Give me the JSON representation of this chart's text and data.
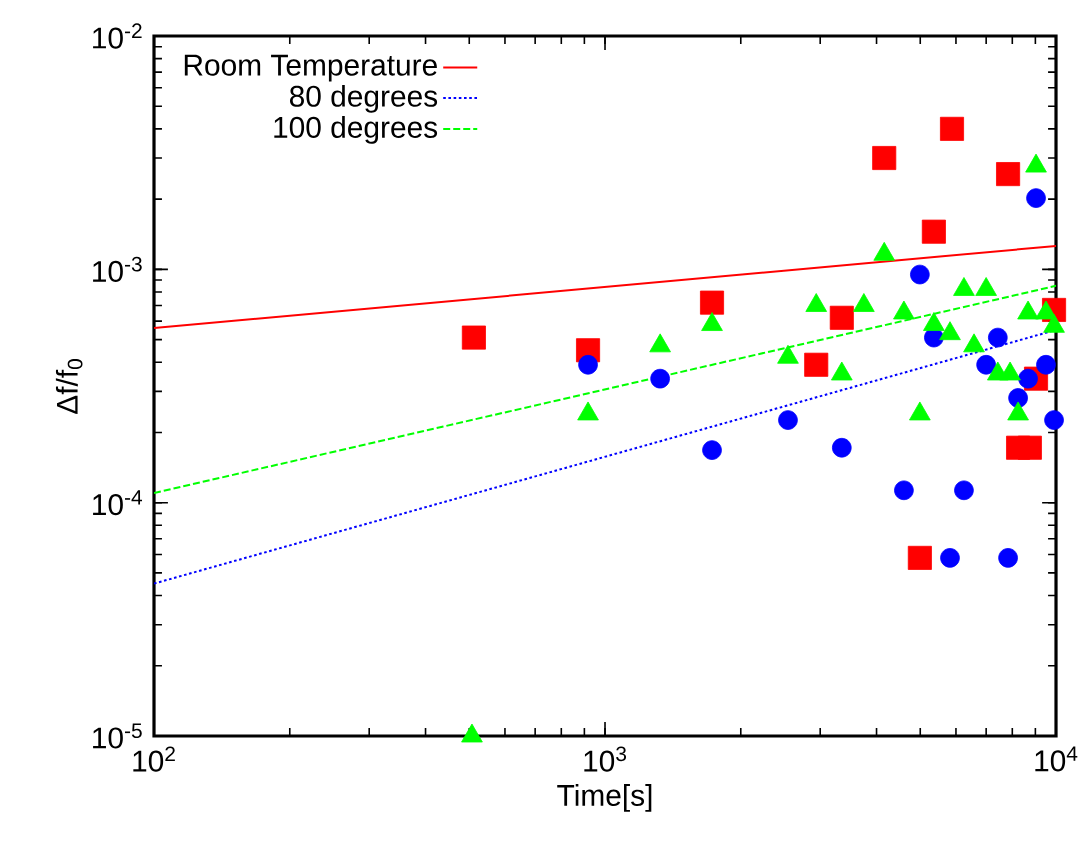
{
  "chart_data": {
    "type": "scatter",
    "xlabel": "Time[s]",
    "ylabel": "Δf/f$_{0}$",
    "log": "xy",
    "legend": "top left",
    "xlim": [
      100,
      10000
    ],
    "ylim": [
      1e-05,
      0.01
    ],
    "xticks": [
      {
        "value": 100,
        "label": "10$^{2}$"
      },
      {
        "value": 1000,
        "label": "10$^{3}$"
      },
      {
        "value": 10000,
        "label": "10$^{4}$"
      }
    ],
    "yticks": [
      {
        "value": 1e-05,
        "label": "10$^{-5}$"
      },
      {
        "value": 0.0001,
        "label": "10$^{-4}$"
      },
      {
        "value": 0.001,
        "label": "10$^{-3}$"
      },
      {
        "value": 0.01,
        "label": "10$^{-2}$"
      }
    ],
    "series": [
      {
        "name": "Room Temperature",
        "type": "line",
        "color": "#ff0000",
        "line_style": "solid",
        "marker": "none",
        "x": [
          100,
          10000
        ],
        "values": [
          0.00056,
          0.00126
        ]
      },
      {
        "name": "80 degrees",
        "type": "line",
        "color": "#0000ff",
        "line_style": "dotted",
        "marker": "none",
        "x": [
          100,
          10000
        ],
        "values": [
          4.5e-05,
          0.00055
        ]
      },
      {
        "name": "100 degrees",
        "type": "line",
        "color": "#00ff00",
        "line_style": "dashed",
        "marker": "none",
        "x": [
          100,
          10000
        ],
        "values": [
          0.00011,
          0.00085
        ]
      },
      {
        "color": "#ff0000",
        "marker": "square",
        "x": [
          512,
          917,
          1727,
          2940,
          3350,
          4160,
          4990,
          5360,
          5880,
          7830,
          8240,
          8750,
          9030,
          9900
        ],
        "values": [
          0.00051,
          0.00045,
          0.00072,
          0.00039,
          0.00062,
          0.003,
          5.8e-05,
          0.00145,
          0.004,
          0.00256,
          0.000172,
          0.000172,
          0.00034,
          0.00067
        ]
      },
      {
        "color": "#0000ff",
        "marker": "circle",
        "x": [
          917,
          1325,
          1727,
          2545,
          3350,
          4600,
          4990,
          5360,
          5820,
          6250,
          7000,
          7430,
          7830,
          8240,
          8670,
          9030,
          9500,
          9900
        ],
        "values": [
          0.00039,
          0.00034,
          0.000168,
          0.000226,
          0.000172,
          0.000113,
          0.00095,
          0.00051,
          5.8e-05,
          0.000113,
          0.00039,
          0.00051,
          5.8e-05,
          0.000281,
          0.00034,
          0.00202,
          0.00039,
          0.000226
        ]
      },
      {
        "color": "#00ff00",
        "marker": "triangle",
        "x": [
          507,
          917,
          1325,
          1727,
          2545,
          2940,
          3350,
          3750,
          4160,
          4600,
          4990,
          5360,
          5820,
          6250,
          6580,
          7000,
          7430,
          7910,
          8240,
          8670,
          9030,
          9500,
          9900
        ],
        "values": [
          1e-05,
          0.00024,
          0.00047,
          0.00058,
          0.00042,
          0.0007,
          0.000356,
          0.0007,
          0.00116,
          0.00065,
          0.00024,
          0.00058,
          0.00053,
          0.00082,
          0.00047,
          0.00082,
          0.000356,
          0.000356,
          0.00024,
          0.00065,
          0.00277,
          0.00065,
          0.00057
        ]
      }
    ]
  }
}
